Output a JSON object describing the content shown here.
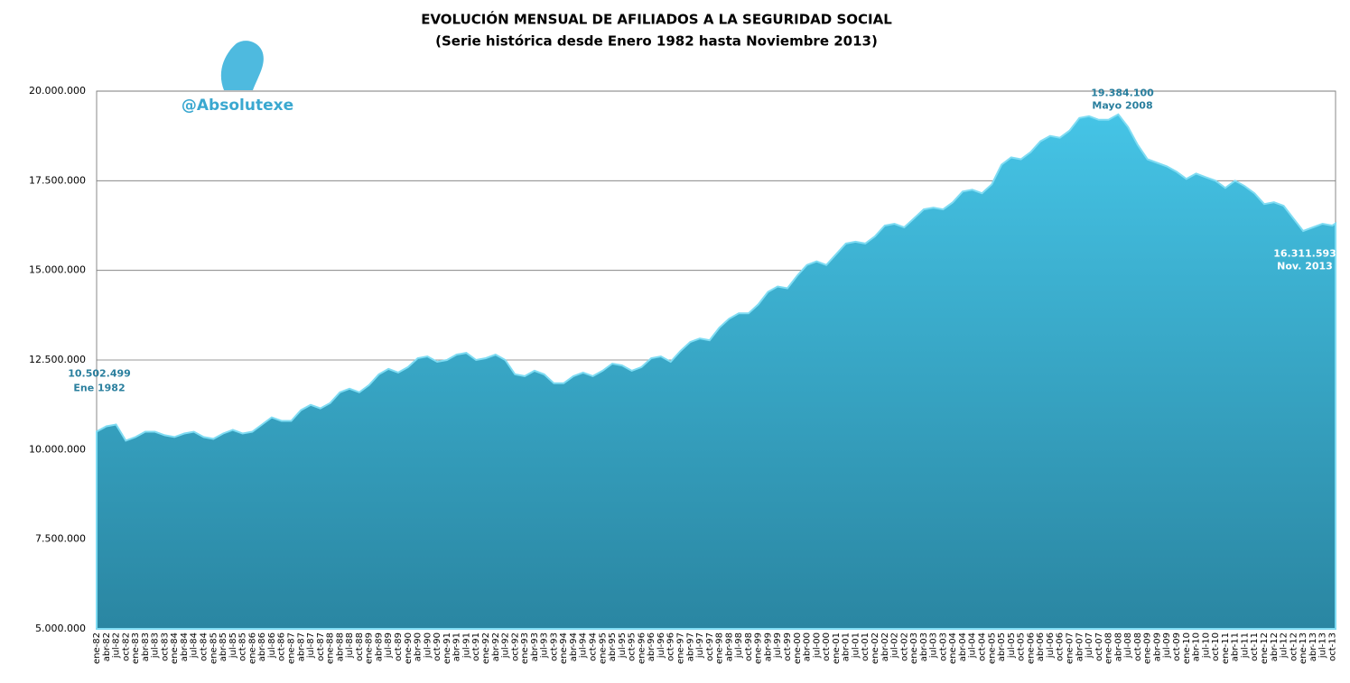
{
  "chart_data": {
    "type": "area",
    "title": "EVOLUCIÓN MENSUAL DE AFILIADOS A LA SEGURIDAD SOCIAL",
    "subtitle": "(Serie histórica desde Enero 1982 hasta Noviembre 2013)",
    "watermark": "@Absolutexe",
    "color": "#34afd4",
    "categories": [
      "ene-82",
      "abr-82",
      "jul-82",
      "oct-82",
      "ene-83",
      "abr-83",
      "jul-83",
      "oct-83",
      "ene-84",
      "abr-84",
      "jul-84",
      "oct-84",
      "ene-85",
      "abr-85",
      "jul-85",
      "oct-85",
      "ene-86",
      "abr-86",
      "jul-86",
      "oct-86",
      "ene-87",
      "abr-87",
      "jul-87",
      "oct-87",
      "ene-88",
      "abr-88",
      "jul-88",
      "oct-88",
      "ene-89",
      "abr-89",
      "jul-89",
      "oct-89",
      "ene-90",
      "abr-90",
      "jul-90",
      "oct-90",
      "ene-91",
      "abr-91",
      "jul-91",
      "oct-91",
      "ene-92",
      "abr-92",
      "jul-92",
      "oct-92",
      "ene-93",
      "abr-93",
      "jul-93",
      "oct-93",
      "ene-94",
      "abr-94",
      "jul-94",
      "oct-94",
      "ene-95",
      "abr-95",
      "jul-95",
      "oct-95",
      "ene-96",
      "abr-96",
      "jul-96",
      "oct-96",
      "ene-97",
      "abr-97",
      "jul-97",
      "oct-97",
      "ene-98",
      "abr-98",
      "jul-98",
      "oct-98",
      "ene-99",
      "abr-99",
      "jul-99",
      "oct-99",
      "ene-00",
      "abr-00",
      "jul-00",
      "oct-00",
      "ene-01",
      "abr-01",
      "jul-01",
      "oct-01",
      "ene-02",
      "abr-02",
      "jul-02",
      "oct-02",
      "ene-03",
      "abr-03",
      "jul-03",
      "oct-03",
      "ene-04",
      "abr-04",
      "jul-04",
      "oct-04",
      "ene-05",
      "abr-05",
      "jul-05",
      "oct-05",
      "ene-06",
      "abr-06",
      "jul-06",
      "oct-06",
      "ene-07",
      "abr-07",
      "jul-07",
      "oct-07",
      "ene-08",
      "abr-08",
      "jul-08",
      "oct-08",
      "ene-09",
      "abr-09",
      "jul-09",
      "oct-09",
      "ene-10",
      "abr-10",
      "jul-10",
      "oct-10",
      "ene-11",
      "abr-11",
      "jul-11",
      "oct-11",
      "ene-12",
      "abr-12",
      "jul-12",
      "oct-12",
      "ene-13",
      "abr-13",
      "jul-13",
      "oct-13",
      null
    ],
    "values": [
      10502499,
      10650000,
      10700000,
      10250000,
      10350000,
      10500000,
      10500000,
      10400000,
      10350000,
      10450000,
      10500000,
      10350000,
      10300000,
      10450000,
      10550000,
      10450000,
      10500000,
      10700000,
      10900000,
      10800000,
      10800000,
      11100000,
      11250000,
      11150000,
      11300000,
      11600000,
      11700000,
      11600000,
      11800000,
      12100000,
      12250000,
      12150000,
      12300000,
      12550000,
      12600000,
      12450000,
      12500000,
      12650000,
      12700000,
      12500000,
      12550000,
      12650000,
      12500000,
      12100000,
      12050000,
      12200000,
      12100000,
      11850000,
      11850000,
      12050000,
      12150000,
      12050000,
      12200000,
      12400000,
      12350000,
      12200000,
      12300000,
      12550000,
      12600000,
      12450000,
      12750000,
      13000000,
      13100000,
      13050000,
      13400000,
      13650000,
      13800000,
      13800000,
      14050000,
      14400000,
      14550000,
      14500000,
      14850000,
      15150000,
      15250000,
      15150000,
      15450000,
      15750000,
      15800000,
      15750000,
      15950000,
      16250000,
      16300000,
      16200000,
      16450000,
      16700000,
      16750000,
      16700000,
      16900000,
      17200000,
      17250000,
      17150000,
      17400000,
      17950000,
      18150000,
      18100000,
      18300000,
      18600000,
      18750000,
      18700000,
      18900000,
      19250000,
      19300000,
      19200000,
      19200000,
      19350000,
      19000000,
      18500000,
      18100000,
      18000000,
      17900000,
      17750000,
      17550000,
      17700000,
      17600000,
      17500000,
      17300000,
      17500000,
      17350000,
      17150000,
      16850000,
      16900000,
      16800000,
      16450000,
      16100000,
      16200000,
      16300000,
      16250000,
      16311593
    ],
    "annotations": [
      {
        "value": 10502499,
        "label": "10.502.499",
        "date": "Ene 1982"
      },
      {
        "value": 19384100,
        "label": "19.384.100",
        "date": "Mayo 2008"
      },
      {
        "value": 16311593,
        "label": "16.311.593",
        "date": "Nov. 2013"
      }
    ],
    "ylim": [
      5000000,
      20000000
    ],
    "yticks": [
      {
        "value": 5000000,
        "label": "5.000.000"
      },
      {
        "value": 7500000,
        "label": "7.500.000"
      },
      {
        "value": 10000000,
        "label": "10.000.000"
      },
      {
        "value": 12500000,
        "label": "12.500.000"
      },
      {
        "value": 15000000,
        "label": "15.000.000"
      },
      {
        "value": 17500000,
        "label": "17.500.000"
      },
      {
        "value": 20000000,
        "label": "20.000.000"
      }
    ],
    "grid": true
  }
}
